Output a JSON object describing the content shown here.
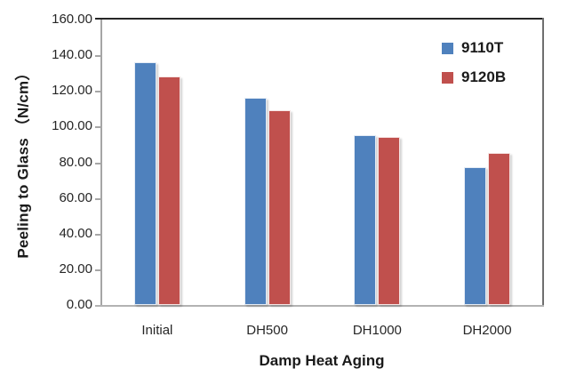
{
  "chart_data": {
    "type": "bar",
    "title": "",
    "xlabel": "Damp Heat Aging",
    "ylabel": "Peeling to Glass （N/cm）",
    "categories": [
      "Initial",
      "DH500",
      "DH1000",
      "DH2000"
    ],
    "series": [
      {
        "name": "9110T",
        "color": "#4F81BD",
        "values": [
          136.3,
          116.0,
          95.0,
          77.3
        ]
      },
      {
        "name": "9120B",
        "color": "#C0504D",
        "values": [
          128.3,
          109.2,
          94.3,
          85.3
        ]
      }
    ],
    "ylim": [
      0,
      160
    ],
    "ytick_step": 20,
    "ytick_labels": [
      "0.00",
      "20.00",
      "40.00",
      "60.00",
      "80.00",
      "100.00",
      "120.00",
      "140.00",
      "160.00"
    ],
    "grid": false,
    "legend_position": "top-right-inside",
    "colors": {
      "plot_border_top": "#262626",
      "plot_border_right": "#6f6f6f",
      "axis_left": "#a6a6a6",
      "axis_bottom": "#b3b3b3",
      "text": "#1a1a1a",
      "background": "#ffffff"
    }
  }
}
